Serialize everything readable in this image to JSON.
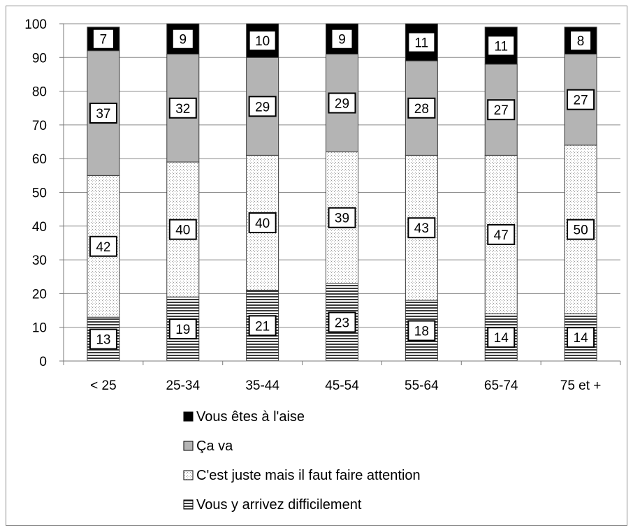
{
  "chart_data": {
    "type": "bar",
    "stacked": true,
    "percent": true,
    "categories": [
      "< 25",
      "25-34",
      "35-44",
      "45-54",
      "55-64",
      "65-74",
      "75 et +"
    ],
    "ylim": [
      0,
      100
    ],
    "yticks": [
      "0",
      "10",
      "20",
      "30",
      "40",
      "50",
      "60",
      "70",
      "80",
      "90",
      "100"
    ],
    "grid": true,
    "legend_position": "bottom",
    "series": [
      {
        "name": "Vous y arrivez difficilement",
        "values": [
          13,
          19,
          21,
          23,
          18,
          14,
          14
        ],
        "labels": [
          "13",
          "19",
          "21",
          "23",
          "18",
          "14",
          "14"
        ],
        "pattern": "horizontal-stripes"
      },
      {
        "name": "C'est juste mais il faut faire attention",
        "values": [
          42,
          40,
          40,
          39,
          43,
          47,
          50
        ],
        "labels": [
          "42",
          "40",
          "40",
          "39",
          "43",
          "47",
          "50"
        ],
        "pattern": "dots"
      },
      {
        "name": "Ça va",
        "values": [
          37,
          32,
          29,
          29,
          28,
          27,
          27
        ],
        "labels": [
          "37",
          "32",
          "29",
          "29",
          "28",
          "27",
          "27"
        ],
        "color": "#b4b4b4"
      },
      {
        "name": "Vous êtes à l'aise",
        "values": [
          7,
          9,
          10,
          9,
          11,
          11,
          8
        ],
        "labels": [
          "7",
          "9",
          "10",
          "9",
          "11",
          "11",
          "8"
        ],
        "color": "#000000"
      }
    ],
    "legend_order": [
      "Vous êtes à l'aise",
      "Ça va",
      "C'est juste mais il faut faire attention",
      "Vous y arrivez difficilement"
    ]
  }
}
